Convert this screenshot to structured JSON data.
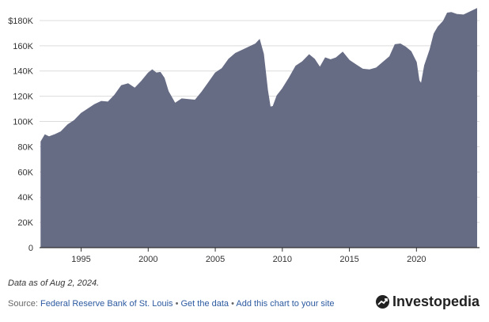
{
  "chart_data": {
    "type": "area",
    "ylim": [
      0,
      190000
    ],
    "y_ticks": [
      0,
      20000,
      40000,
      60000,
      80000,
      100000,
      120000,
      140000,
      160000,
      180000
    ],
    "y_tick_labels": [
      "0",
      "20K",
      "40K",
      "60K",
      "80K",
      "100K",
      "120K",
      "140K",
      "160K",
      "$180K"
    ],
    "x_ticks": [
      1995,
      2000,
      2005,
      2010,
      2015,
      2020
    ],
    "x_tick_labels": [
      "1995",
      "2000",
      "2005",
      "2010",
      "2015",
      "2020"
    ],
    "xlim": [
      1991.9,
      2024.7
    ],
    "grid": "horizontal",
    "fill_color": "#676c85",
    "series": [
      {
        "x": [
          1992.0,
          1992.3,
          1992.6,
          1993.0,
          1993.5,
          1994.0,
          1994.5,
          1995.0,
          1995.5,
          1996.0,
          1996.5,
          1997.0,
          1997.5,
          1998.0,
          1998.5,
          1999.0,
          1999.5,
          2000.0,
          2000.3,
          2000.6,
          2000.9,
          2001.2,
          2001.5,
          2002.0,
          2002.5,
          2003.0,
          2003.5,
          2004.0,
          2004.5,
          2005.0,
          2005.5,
          2006.0,
          2006.5,
          2007.0,
          2007.5,
          2008.0,
          2008.3,
          2008.6,
          2008.9,
          2009.1,
          2009.3,
          2009.6,
          2010.0,
          2010.5,
          2011.0,
          2011.5,
          2012.0,
          2012.4,
          2012.8,
          2013.2,
          2013.6,
          2014.0,
          2014.5,
          2015.0,
          2015.5,
          2016.0,
          2016.5,
          2017.0,
          2017.5,
          2018.0,
          2018.4,
          2018.8,
          2019.2,
          2019.6,
          2020.0,
          2020.2,
          2020.35,
          2020.6,
          2021.0,
          2021.3,
          2021.6,
          2022.0,
          2022.3,
          2022.6,
          2023.0,
          2023.5,
          2024.0,
          2024.5
        ],
        "y": [
          84000,
          88000,
          88000,
          91000,
          92000,
          96000,
          101000,
          108000,
          110000,
          112000,
          116000,
          117000,
          121000,
          127000,
          130000,
          128000,
          132000,
          137000,
          141000,
          140000,
          139000,
          133000,
          124000,
          116000,
          118000,
          116000,
          117000,
          125000,
          131000,
          137000,
          142000,
          151000,
          154000,
          155000,
          159000,
          163000,
          165000,
          152000,
          125000,
          113000,
          112000,
          119000,
          126000,
          136000,
          144000,
          146000,
          153000,
          151000,
          143000,
          149000,
          149000,
          152000,
          155000,
          147000,
          145000,
          143000,
          141000,
          141000,
          147000,
          153000,
          161000,
          160000,
          159000,
          157000,
          147000,
          131000,
          130000,
          146000,
          157000,
          168000,
          175000,
          181000,
          186000,
          185000,
          185000,
          186000,
          187000,
          188000
        ]
      }
    ]
  },
  "footer": {
    "note": "Data as of Aug 2, 2024.",
    "source_prefix": "Source:",
    "source_link": "Federal Reserve Bank of St. Louis",
    "sep1": "•",
    "get_data": "Get the data",
    "sep2": "•",
    "add_chart": "Add this chart to your site"
  },
  "brand": {
    "name": "Investopedia"
  }
}
